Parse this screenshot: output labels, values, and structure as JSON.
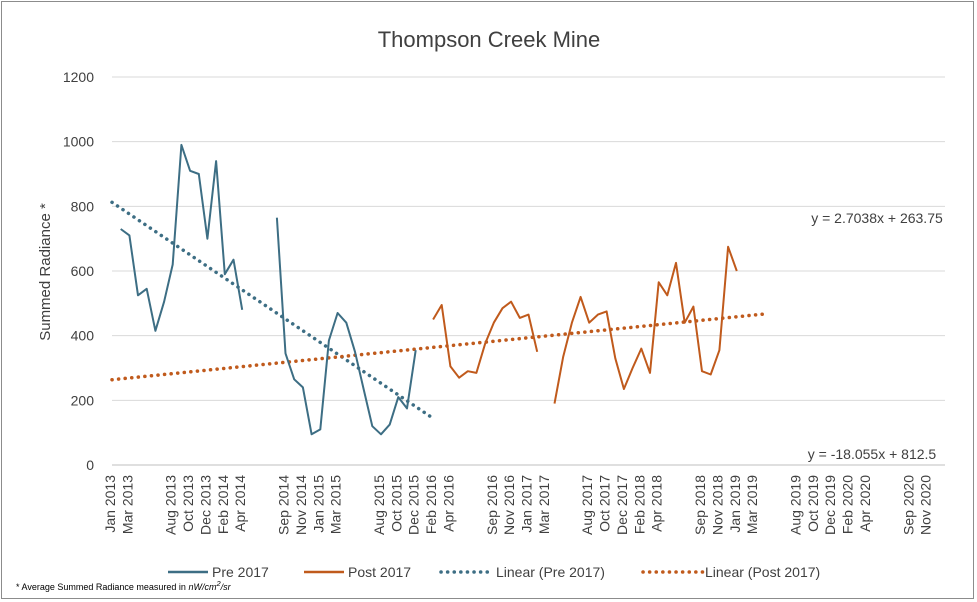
{
  "chart_data": {
    "type": "line",
    "title": "Thompson Creek Mine",
    "ylabel": "Summed Radiance *",
    "xlabel": "",
    "ylim": [
      0,
      1200
    ],
    "yticks": [
      0,
      200,
      400,
      600,
      800,
      1000,
      1200
    ],
    "grid": true,
    "legend_position": "bottom",
    "x_count": 97,
    "x_tick_labels": [
      {
        "i": 0,
        "label": "Jan 2013"
      },
      {
        "i": 2,
        "label": "Mar 2013"
      },
      {
        "i": 7,
        "label": "Aug 2013"
      },
      {
        "i": 9,
        "label": "Oct 2013"
      },
      {
        "i": 11,
        "label": "Dec 2013"
      },
      {
        "i": 13,
        "label": "Feb 2014"
      },
      {
        "i": 15,
        "label": "Apr 2014"
      },
      {
        "i": 20,
        "label": "Sep 2014"
      },
      {
        "i": 22,
        "label": "Nov 2014"
      },
      {
        "i": 24,
        "label": "Jan 2015"
      },
      {
        "i": 26,
        "label": "Mar 2015"
      },
      {
        "i": 31,
        "label": "Aug 2015"
      },
      {
        "i": 33,
        "label": "Oct 2015"
      },
      {
        "i": 35,
        "label": "Dec 2015"
      },
      {
        "i": 37,
        "label": "Feb 2016"
      },
      {
        "i": 39,
        "label": "Apr 2016"
      },
      {
        "i": 44,
        "label": "Sep 2016"
      },
      {
        "i": 46,
        "label": "Nov 2016"
      },
      {
        "i": 48,
        "label": "Jan 2017"
      },
      {
        "i": 50,
        "label": "Mar 2017"
      },
      {
        "i": 55,
        "label": "Aug 2017"
      },
      {
        "i": 57,
        "label": "Oct 2017"
      },
      {
        "i": 59,
        "label": "Dec 2017"
      },
      {
        "i": 61,
        "label": "Feb 2018"
      },
      {
        "i": 63,
        "label": "Apr 2018"
      },
      {
        "i": 68,
        "label": "Sep 2018"
      },
      {
        "i": 70,
        "label": "Nov 2018"
      },
      {
        "i": 72,
        "label": "Jan 2019"
      },
      {
        "i": 74,
        "label": "Mar 2019"
      },
      {
        "i": 79,
        "label": "Aug 2019"
      },
      {
        "i": 81,
        "label": "Oct 2019"
      },
      {
        "i": 83,
        "label": "Dec 2019"
      },
      {
        "i": 85,
        "label": "Feb 2020"
      },
      {
        "i": 87,
        "label": "Apr 2020"
      },
      {
        "i": 92,
        "label": "Sep 2020"
      },
      {
        "i": 94,
        "label": "Nov 2020"
      }
    ],
    "series": [
      {
        "name": "Pre 2017",
        "color": "#3d6e84",
        "style": "solid",
        "segments": [
          [
            [
              1,
              730
            ],
            [
              2,
              710
            ],
            [
              3,
              525
            ],
            [
              4,
              545
            ],
            [
              5,
              415
            ],
            [
              6,
              505
            ],
            [
              7,
              620
            ],
            [
              8,
              990
            ],
            [
              9,
              910
            ],
            [
              10,
              900
            ],
            [
              11,
              700
            ],
            [
              12,
              940
            ],
            [
              13,
              590
            ],
            [
              14,
              635
            ],
            [
              15,
              480
            ]
          ],
          [
            [
              19,
              765
            ],
            [
              20,
              345
            ],
            [
              21,
              265
            ],
            [
              22,
              240
            ],
            [
              23,
              95
            ],
            [
              24,
              110
            ],
            [
              25,
              385
            ],
            [
              26,
              470
            ],
            [
              27,
              440
            ],
            [
              28,
              350
            ],
            [
              29,
              235
            ],
            [
              30,
              120
            ],
            [
              31,
              95
            ],
            [
              32,
              125
            ],
            [
              33,
              210
            ],
            [
              34,
              175
            ],
            [
              35,
              355
            ]
          ]
        ]
      },
      {
        "name": "Post 2017",
        "color": "#c05a1c",
        "style": "solid",
        "segments": [
          [
            [
              37,
              450
            ],
            [
              38,
              495
            ],
            [
              39,
              305
            ],
            [
              40,
              270
            ],
            [
              41,
              290
            ],
            [
              42,
              285
            ],
            [
              43,
              375
            ],
            [
              44,
              440
            ],
            [
              45,
              485
            ],
            [
              46,
              505
            ],
            [
              47,
              455
            ],
            [
              48,
              465
            ],
            [
              49,
              350
            ]
          ],
          [
            [
              51,
              190
            ],
            [
              52,
              335
            ],
            [
              53,
              440
            ],
            [
              54,
              520
            ],
            [
              55,
              440
            ],
            [
              56,
              465
            ],
            [
              57,
              475
            ],
            [
              58,
              330
            ],
            [
              59,
              235
            ],
            [
              60,
              300
            ],
            [
              61,
              360
            ],
            [
              62,
              285
            ],
            [
              63,
              565
            ],
            [
              64,
              525
            ],
            [
              65,
              625
            ],
            [
              66,
              440
            ],
            [
              67,
              490
            ],
            [
              68,
              290
            ],
            [
              69,
              280
            ],
            [
              70,
              355
            ],
            [
              71,
              675
            ],
            [
              72,
              600
            ]
          ]
        ]
      },
      {
        "name": "Linear (Pre 2017)",
        "color": "#3d6e84",
        "style": "dotted",
        "trend": {
          "slope": -18.055,
          "intercept": 812.5,
          "x_start": 0,
          "x_end": 37
        },
        "equation": "y = -18.055x + 812.5"
      },
      {
        "name": "Linear (Post 2017)",
        "color": "#c05a1c",
        "style": "dotted",
        "trend": {
          "slope": 2.7038,
          "intercept": 263.75,
          "x_start": 0,
          "x_end": 75
        },
        "equation": "y = 2.7038x + 263.75"
      }
    ],
    "footnote": {
      "prefix": "* Average Summed Radiance measured in ",
      "unit": "nW/cm",
      "sup": "2",
      "suffix": "/sr"
    }
  }
}
